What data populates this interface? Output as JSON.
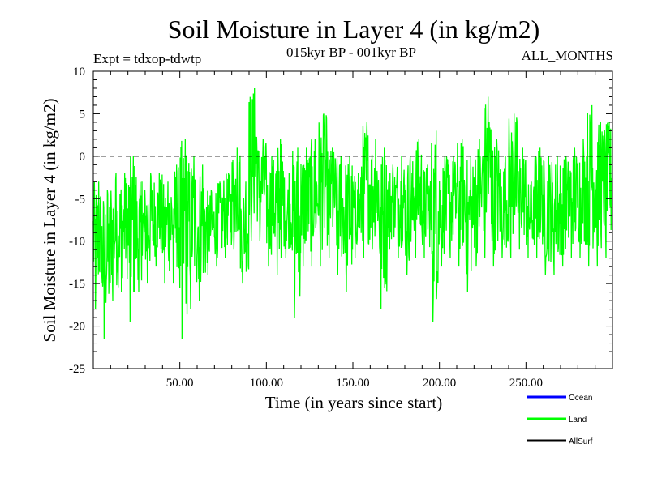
{
  "chart_data": {
    "type": "line",
    "title": "Soil Moisture in Layer 4 (in kg/m2)",
    "subtitle_left": "Expt = tdxop-tdwtp",
    "subtitle_center": "015kyr BP - 001kyr BP",
    "subtitle_right": "ALL_MONTHS",
    "xlabel": "Time (in years since start)",
    "ylabel": "Soil Moisture in Layer 4 (in kg/m2)",
    "xlim": [
      0,
      300
    ],
    "ylim": [
      -25,
      10
    ],
    "x_ticks": [
      50,
      100,
      150,
      200,
      250
    ],
    "x_tick_labels": [
      "50.00",
      "100.00",
      "150.00",
      "200.00",
      "250.00"
    ],
    "y_ticks": [
      10,
      5,
      0,
      -5,
      -10,
      -15,
      -20,
      -25
    ],
    "y_tick_labels": [
      "10",
      "5",
      "0",
      "-5",
      "-10",
      "-15",
      "-20",
      "-25"
    ],
    "reference_line": 0,
    "series": [
      {
        "name": "Land",
        "color": "#00ff00",
        "x_start": 0,
        "x_step": 5,
        "min": [
          -18,
          -21.5,
          -17,
          -16,
          -19.5,
          -16,
          -15,
          -13,
          -15,
          -15,
          -21.5,
          -18,
          -17,
          -14,
          -13,
          -12,
          -11,
          -15,
          -10,
          -10,
          -13,
          -14,
          -12,
          -19,
          -13,
          -13,
          -13,
          -12,
          -14,
          -16,
          -12,
          -12,
          -11,
          -18,
          -11,
          -12,
          -14,
          -12,
          -12,
          -19.5,
          -13,
          -12,
          -13,
          -16,
          -13,
          -12,
          -13,
          -12,
          -12,
          -11,
          -12,
          -12,
          -14,
          -14,
          -13,
          -12,
          -12,
          -13,
          -13,
          -12
        ],
        "max": [
          -3,
          -4,
          -2,
          -2,
          0,
          -3,
          -2,
          -2,
          -3,
          -1,
          2,
          0,
          -1,
          -4,
          -3,
          -2,
          1,
          -3,
          8,
          2,
          0,
          2,
          -2,
          1,
          1,
          2,
          5,
          1,
          0,
          0,
          -2,
          4,
          2,
          1,
          -1,
          0,
          0,
          2,
          -1,
          3,
          0,
          0,
          2,
          0,
          2,
          7,
          2,
          0,
          5,
          1,
          -3,
          1,
          0,
          0,
          0,
          1,
          2,
          6,
          4,
          4
        ]
      },
      {
        "name": "Ocean",
        "color": "#0000ff",
        "values": []
      },
      {
        "name": "AllSurf",
        "color": "#000000",
        "values": []
      }
    ],
    "legend": [
      {
        "label": "Ocean",
        "color": "#0000ff"
      },
      {
        "label": "Land",
        "color": "#00ff00"
      },
      {
        "label": "AllSurf",
        "color": "#000000"
      }
    ],
    "legend_position": "bottom-right"
  }
}
